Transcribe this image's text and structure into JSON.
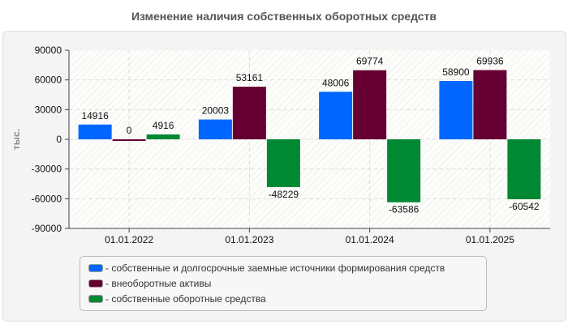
{
  "chart_data": {
    "type": "bar",
    "title": "Изменение наличия собственных оборотных средств",
    "ylabel": "тыс.",
    "xlabel": "",
    "ylim": [
      -90000,
      90000
    ],
    "yticks": [
      "90000",
      "60000",
      "30000",
      "0",
      "-30000",
      "-60000",
      "-90000"
    ],
    "grid": true,
    "legend_position": "bottom",
    "categories": [
      "01.01.2022",
      "01.01.2023",
      "01.01.2024",
      "01.01.2025"
    ],
    "series": [
      {
        "name": "- собственные и долгосрочные заемные источники формирования средств",
        "color": "#0066ff",
        "values": [
          14916,
          20003,
          48006,
          58900
        ]
      },
      {
        "name": "- внеоборотные активы",
        "color": "#660033",
        "values": [
          0,
          53161,
          69774,
          69936
        ]
      },
      {
        "name": "- собственные оборотные средства",
        "color": "#008833",
        "values": [
          4916,
          -48229,
          -63586,
          -60542
        ]
      }
    ]
  }
}
